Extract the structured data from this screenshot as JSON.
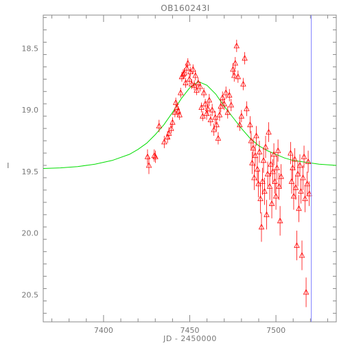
{
  "chart_data": {
    "type": "scatter",
    "title": "OB160243I",
    "xlabel": "JD - 2450000",
    "ylabel": "I",
    "xlim": [
      7365,
      7535
    ],
    "ylim": [
      20.72,
      18.23
    ],
    "y_inverted": true,
    "xticks": [
      7400,
      7450,
      7500
    ],
    "yticks": [
      18.5,
      19.0,
      19.5,
      20.0,
      20.5
    ],
    "xtick_labels": [
      "7400",
      "7450",
      "7500"
    ],
    "ytick_labels": [
      "18.5",
      "19.0",
      "19.5",
      "20.0",
      "20.5"
    ],
    "grid": false,
    "colors": {
      "axes": "#888888",
      "points": "#ff0000",
      "model": "#00dd00",
      "marker_line": "#8080ff"
    },
    "vertical_line": {
      "x": 7520.5
    },
    "series": [
      {
        "kind": "observations",
        "marker": "open-triangle",
        "error_bars": true,
        "points": [
          [
            7425.5,
            19.38,
            0.06
          ],
          [
            7426.3,
            19.45,
            0.07
          ],
          [
            7429.4,
            19.37,
            0.05
          ],
          [
            7430.1,
            19.38,
            0.05
          ],
          [
            7432.2,
            19.13,
            0.05
          ],
          [
            7435.2,
            19.26,
            0.05
          ],
          [
            7437.1,
            19.22,
            0.05
          ],
          [
            7437.9,
            19.19,
            0.05
          ],
          [
            7439.2,
            19.15,
            0.04
          ],
          [
            7440.0,
            19.1,
            0.04
          ],
          [
            7441.4,
            19.02,
            0.04
          ],
          [
            7441.9,
            18.94,
            0.04
          ],
          [
            7442.6,
            18.98,
            0.04
          ],
          [
            7443.3,
            19.01,
            0.04
          ],
          [
            7444.1,
            19.04,
            0.04
          ],
          [
            7444.7,
            18.86,
            0.04
          ],
          [
            7445.4,
            18.73,
            0.04
          ],
          [
            7446.2,
            18.71,
            0.04
          ],
          [
            7446.9,
            18.7,
            0.04
          ],
          [
            7447.6,
            18.78,
            0.04
          ],
          [
            7448.2,
            18.66,
            0.04
          ],
          [
            7448.9,
            18.62,
            0.04
          ],
          [
            7449.8,
            18.75,
            0.04
          ],
          [
            7450.3,
            18.69,
            0.04
          ],
          [
            7451.1,
            18.79,
            0.04
          ],
          [
            7451.9,
            18.67,
            0.04
          ],
          [
            7452.6,
            18.8,
            0.04
          ],
          [
            7453.3,
            18.72,
            0.04
          ],
          [
            7454.0,
            18.84,
            0.04
          ],
          [
            7454.9,
            18.78,
            0.04
          ],
          [
            7456.0,
            18.81,
            0.04
          ],
          [
            7456.8,
            18.98,
            0.04
          ],
          [
            7457.5,
            19.05,
            0.04
          ],
          [
            7458.2,
            18.86,
            0.04
          ],
          [
            7459.0,
            18.95,
            0.04
          ],
          [
            7459.8,
            19.03,
            0.05
          ],
          [
            7460.5,
            18.99,
            0.05
          ],
          [
            7461.3,
            18.92,
            0.05
          ],
          [
            7462.1,
            19.08,
            0.05
          ],
          [
            7463.0,
            19.0,
            0.05
          ],
          [
            7464.0,
            19.16,
            0.05
          ],
          [
            7464.8,
            19.06,
            0.05
          ],
          [
            7465.6,
            19.12,
            0.05
          ],
          [
            7466.5,
            19.23,
            0.05
          ],
          [
            7467.3,
            19.04,
            0.05
          ],
          [
            7468.0,
            18.97,
            0.05
          ],
          [
            7469.0,
            18.9,
            0.05
          ],
          [
            7470.0,
            18.95,
            0.05
          ],
          [
            7471.0,
            18.86,
            0.05
          ],
          [
            7472.0,
            19.02,
            0.05
          ],
          [
            7473.0,
            18.88,
            0.05
          ],
          [
            7474.0,
            18.96,
            0.05
          ],
          [
            7475.1,
            18.67,
            0.05
          ],
          [
            7475.8,
            18.72,
            0.05
          ],
          [
            7476.4,
            18.62,
            0.05
          ],
          [
            7477.2,
            18.48,
            0.05
          ],
          [
            7478.0,
            18.73,
            0.05
          ],
          [
            7479.0,
            19.12,
            0.05
          ],
          [
            7480.0,
            19.05,
            0.05
          ],
          [
            7481.0,
            18.79,
            0.05
          ],
          [
            7481.9,
            18.58,
            0.05
          ],
          [
            7483.0,
            18.99,
            0.06
          ],
          [
            7485.0,
            19.12,
            0.07
          ],
          [
            7485.6,
            19.25,
            0.08
          ],
          [
            7486.2,
            19.43,
            0.09
          ],
          [
            7486.8,
            19.31,
            0.08
          ],
          [
            7487.4,
            19.55,
            0.1
          ],
          [
            7488.0,
            19.37,
            0.09
          ],
          [
            7488.6,
            19.21,
            0.08
          ],
          [
            7489.2,
            19.48,
            0.1
          ],
          [
            7489.8,
            19.6,
            0.11
          ],
          [
            7490.4,
            19.34,
            0.09
          ],
          [
            7491.0,
            19.72,
            0.12
          ],
          [
            7491.6,
            19.95,
            0.12
          ],
          [
            7492.2,
            19.58,
            0.11
          ],
          [
            7492.8,
            19.41,
            0.1
          ],
          [
            7493.4,
            19.66,
            0.11
          ],
          [
            7494.0,
            19.3,
            0.09
          ],
          [
            7494.6,
            19.85,
            0.12
          ],
          [
            7495.2,
            19.52,
            0.1
          ],
          [
            7495.8,
            19.18,
            0.08
          ],
          [
            7496.4,
            19.62,
            0.11
          ],
          [
            7497.0,
            19.44,
            0.1
          ],
          [
            7497.6,
            19.76,
            0.12
          ],
          [
            7498.2,
            19.5,
            0.1
          ],
          [
            7498.8,
            19.36,
            0.09
          ],
          [
            7499.4,
            19.58,
            0.1
          ],
          [
            7500.0,
            19.7,
            0.11
          ],
          [
            7500.6,
            19.47,
            0.1
          ],
          [
            7501.2,
            19.33,
            0.09
          ],
          [
            7501.8,
            19.62,
            0.11
          ],
          [
            7502.4,
            19.9,
            0.12
          ],
          [
            7503.0,
            19.54,
            0.1
          ],
          [
            7508.5,
            19.35,
            0.09
          ],
          [
            7509.1,
            19.58,
            0.1
          ],
          [
            7509.7,
            19.47,
            0.1
          ],
          [
            7510.3,
            19.7,
            0.11
          ],
          [
            7510.9,
            19.4,
            0.09
          ],
          [
            7511.5,
            19.63,
            0.1
          ],
          [
            7512.1,
            20.1,
            0.12
          ],
          [
            7512.7,
            19.52,
            0.1
          ],
          [
            7513.3,
            19.8,
            0.11
          ],
          [
            7513.9,
            19.45,
            0.09
          ],
          [
            7514.5,
            19.66,
            0.1
          ],
          [
            7515.1,
            20.18,
            0.12
          ],
          [
            7515.7,
            19.55,
            0.1
          ],
          [
            7516.3,
            19.38,
            0.09
          ],
          [
            7516.9,
            19.72,
            0.11
          ],
          [
            7517.5,
            20.48,
            0.12
          ],
          [
            7518.1,
            19.6,
            0.1
          ],
          [
            7518.7,
            19.42,
            0.09
          ],
          [
            7519.3,
            19.68,
            0.1
          ]
        ]
      },
      {
        "kind": "model",
        "marker": "line",
        "points": [
          [
            7365,
            19.475
          ],
          [
            7375,
            19.47
          ],
          [
            7385,
            19.46
          ],
          [
            7395,
            19.44
          ],
          [
            7405,
            19.41
          ],
          [
            7415,
            19.36
          ],
          [
            7420,
            19.32
          ],
          [
            7425,
            19.27
          ],
          [
            7430,
            19.2
          ],
          [
            7435,
            19.12
          ],
          [
            7440,
            19.02
          ],
          [
            7445,
            18.91
          ],
          [
            7450,
            18.82
          ],
          [
            7455,
            18.77
          ],
          [
            7460,
            18.8
          ],
          [
            7465,
            18.87
          ],
          [
            7470,
            18.97
          ],
          [
            7475,
            19.06
          ],
          [
            7480,
            19.15
          ],
          [
            7485,
            19.23
          ],
          [
            7490,
            19.29
          ],
          [
            7495,
            19.33
          ],
          [
            7500,
            19.36
          ],
          [
            7505,
            19.39
          ],
          [
            7510,
            19.41
          ],
          [
            7515,
            19.42
          ],
          [
            7520,
            19.43
          ],
          [
            7525,
            19.44
          ],
          [
            7535,
            19.45
          ]
        ]
      }
    ]
  }
}
